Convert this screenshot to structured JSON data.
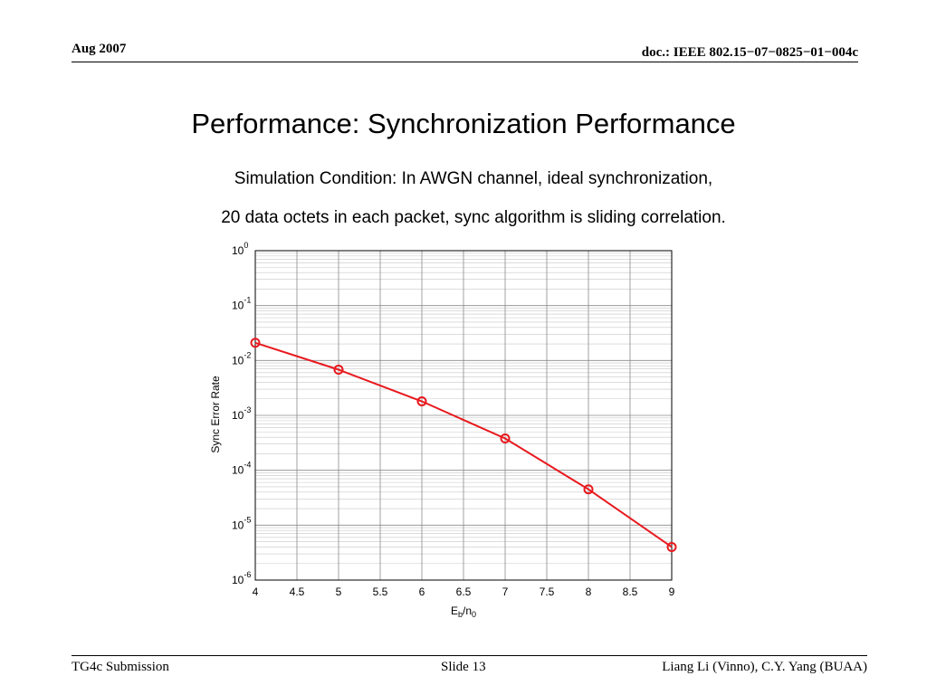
{
  "header": {
    "date": "Aug 2007",
    "doc": "doc.: IEEE 802.15−07−0825−01−004c"
  },
  "slide": {
    "title": "Performance: Synchronization Performance",
    "subtitle_line1": "Simulation Condition: In AWGN channel, ideal synchronization,",
    "subtitle_line2": "20 data octets in each packet, sync algorithm is sliding correlation."
  },
  "footer": {
    "left": "TG4c Submission",
    "center": "Slide 13",
    "right": "Liang Li (Vinno), C.Y. Yang (BUAA)"
  },
  "chart_data": {
    "type": "line",
    "title": "",
    "xlabel": "E_b/n_0",
    "xlabel_main": "E",
    "xlabel_sub1": "b",
    "xlabel_mid": "/n",
    "xlabel_sub2": "0",
    "ylabel": "Sync Error Rate",
    "yscale": "log",
    "xlim": [
      4,
      9
    ],
    "ylim": [
      1e-06,
      1
    ],
    "grid": true,
    "legend": "none",
    "x_ticks": [
      "4",
      "4.5",
      "5",
      "5.5",
      "6",
      "6.5",
      "7",
      "7.5",
      "8",
      "8.5",
      "9"
    ],
    "y_ticks": [
      {
        "base": "10",
        "exp": "0"
      },
      {
        "base": "10",
        "exp": "-1"
      },
      {
        "base": "10",
        "exp": "-2"
      },
      {
        "base": "10",
        "exp": "-3"
      },
      {
        "base": "10",
        "exp": "-4"
      },
      {
        "base": "10",
        "exp": "-5"
      },
      {
        "base": "10",
        "exp": "-6"
      }
    ],
    "series": [
      {
        "color": "#e8191e",
        "marker": "circle",
        "x": [
          4,
          5,
          6,
          7,
          8,
          9
        ],
        "y": [
          0.021,
          0.0068,
          0.0018,
          0.00038,
          4.5e-05,
          4e-06
        ]
      }
    ]
  }
}
